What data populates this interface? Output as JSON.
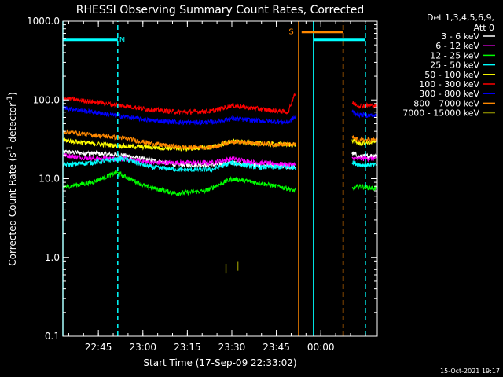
{
  "chart_data": {
    "type": "line",
    "title": "RHESSI Observing Summary Count Rates, Corrected",
    "xlabel": "Start Time (17-Sep-09 22:33:02)",
    "ylabel_main": "Corrected Count Rate (s",
    "ylabel_sup1": "-1",
    "ylabel_mid": " detector",
    "ylabel_sup2": "-1",
    "ylabel_end": ")",
    "y_scale": "log",
    "ylim": [
      0.1,
      1000.0
    ],
    "y_ticks": [
      {
        "value": 1000.0,
        "label": "1000.0"
      },
      {
        "value": 100.0,
        "label": "100.0"
      },
      {
        "value": 10.0,
        "label": "10.0"
      },
      {
        "value": 1.0,
        "label": "1.0"
      },
      {
        "value": 0.1,
        "label": "0.1"
      }
    ],
    "x_unit": "minutes after 22:33:02",
    "xlim": [
      0,
      106
    ],
    "x_ticks": [
      {
        "t": 11.97,
        "label": "22:45"
      },
      {
        "t": 26.97,
        "label": "23:00"
      },
      {
        "t": 41.97,
        "label": "23:15"
      },
      {
        "t": 56.97,
        "label": "23:30"
      },
      {
        "t": 71.97,
        "label": "23:45"
      },
      {
        "t": 86.97,
        "label": "00:00"
      }
    ],
    "legend_header_1": "Det 1,3,4,5,6,9,",
    "legend_header_2": "Att 0",
    "legend_placement": "outside-right",
    "gaps": [
      [
        78.5,
        97.5
      ]
    ],
    "series": [
      {
        "name": "3 - 6 keV",
        "color": "#ffffff",
        "points": [
          [
            0,
            22
          ],
          [
            10,
            21
          ],
          [
            20,
            20
          ],
          [
            30,
            17
          ],
          [
            40,
            15
          ],
          [
            50,
            15
          ],
          [
            57,
            16
          ],
          [
            65,
            15
          ],
          [
            78,
            14
          ],
          [
            98,
            21
          ],
          [
            100,
            19
          ],
          [
            106,
            20
          ]
        ]
      },
      {
        "name": "6 - 12 keV",
        "color": "#ff00ff",
        "points": [
          [
            0,
            20
          ],
          [
            10,
            18
          ],
          [
            20,
            18
          ],
          [
            30,
            16
          ],
          [
            40,
            16
          ],
          [
            50,
            16
          ],
          [
            57,
            18
          ],
          [
            65,
            16
          ],
          [
            78,
            15
          ],
          [
            98,
            18
          ],
          [
            100,
            18
          ],
          [
            106,
            18
          ]
        ]
      },
      {
        "name": "12 - 25 keV",
        "color": "#00ff00",
        "points": [
          [
            0,
            7.8
          ],
          [
            10,
            9
          ],
          [
            18,
            12
          ],
          [
            28,
            8
          ],
          [
            38,
            6.5
          ],
          [
            48,
            7
          ],
          [
            57,
            10
          ],
          [
            65,
            9
          ],
          [
            76,
            7.5
          ],
          [
            78,
            7
          ],
          [
            98,
            7.5
          ],
          [
            100,
            8
          ],
          [
            106,
            7.5
          ]
        ]
      },
      {
        "name": "25 - 50 keV",
        "color": "#00ffff",
        "points": [
          [
            0,
            15
          ],
          [
            10,
            16
          ],
          [
            20,
            18
          ],
          [
            30,
            14
          ],
          [
            40,
            13
          ],
          [
            50,
            13
          ],
          [
            57,
            16
          ],
          [
            65,
            14
          ],
          [
            78,
            14
          ],
          [
            98,
            16
          ],
          [
            100,
            15
          ],
          [
            106,
            15
          ]
        ]
      },
      {
        "name": "50 - 100 keV",
        "color": "#ffff00",
        "points": [
          [
            0,
            31
          ],
          [
            10,
            28
          ],
          [
            20,
            26
          ],
          [
            30,
            25
          ],
          [
            40,
            24
          ],
          [
            50,
            25
          ],
          [
            57,
            30
          ],
          [
            65,
            28
          ],
          [
            78,
            27
          ],
          [
            98,
            30
          ],
          [
            100,
            28
          ],
          [
            106,
            29
          ]
        ]
      },
      {
        "name": "100 - 300 keV",
        "color": "#ff0000",
        "points": [
          [
            0,
            105
          ],
          [
            10,
            95
          ],
          [
            20,
            85
          ],
          [
            30,
            75
          ],
          [
            40,
            70
          ],
          [
            50,
            72
          ],
          [
            57,
            85
          ],
          [
            65,
            78
          ],
          [
            76,
            70
          ],
          [
            78,
            118
          ],
          [
            98,
            90
          ],
          [
            100,
            85
          ],
          [
            106,
            85
          ]
        ]
      },
      {
        "name": "300 - 800 keV",
        "color": "#0000ff",
        "points": [
          [
            0,
            80
          ],
          [
            10,
            70
          ],
          [
            20,
            62
          ],
          [
            30,
            55
          ],
          [
            40,
            52
          ],
          [
            50,
            52
          ],
          [
            57,
            58
          ],
          [
            65,
            55
          ],
          [
            76,
            52
          ],
          [
            78,
            60
          ],
          [
            98,
            70
          ],
          [
            100,
            65
          ],
          [
            106,
            63
          ]
        ]
      },
      {
        "name": "800 - 7000 keV",
        "color": "#ff8800",
        "points": [
          [
            0,
            40
          ],
          [
            10,
            36
          ],
          [
            20,
            33
          ],
          [
            30,
            28
          ],
          [
            40,
            25
          ],
          [
            50,
            25
          ],
          [
            57,
            30
          ],
          [
            65,
            28
          ],
          [
            78,
            27
          ],
          [
            98,
            33
          ],
          [
            100,
            31
          ],
          [
            106,
            31
          ]
        ]
      },
      {
        "name": "7000 - 15000 keV",
        "color": "#808000",
        "points": [
          [
            55,
            0.72
          ],
          [
            59,
            0.78
          ]
        ]
      }
    ],
    "vlines": [
      {
        "t": 0,
        "color": "#00ffff",
        "dash": false
      },
      {
        "t": 18.5,
        "color": "#00ffff",
        "dash": true
      },
      {
        "t": 79.5,
        "color": "#ff8800",
        "dash": false
      },
      {
        "t": 84.5,
        "color": "#00ffff",
        "dash": false
      },
      {
        "t": 94.5,
        "color": "#ff8800",
        "dash": true
      },
      {
        "t": 102.0,
        "color": "#00ffff",
        "dash": true
      }
    ],
    "flag_bars": [
      {
        "t0": 0,
        "t1": 18.5,
        "value": 580,
        "color": "#00ffff"
      },
      {
        "t0": 84.5,
        "t1": 102.0,
        "value": 580,
        "color": "#00ffff"
      },
      {
        "t0": 80.5,
        "t1": 94.5,
        "value": 730,
        "color": "#ff8800"
      }
    ],
    "flag_labels": [
      {
        "text": "N",
        "t": 20.0,
        "value": 590,
        "color": "#00ffff"
      },
      {
        "text": "S",
        "t": 77.0,
        "value": 750,
        "color": "#ff8800"
      }
    ],
    "footer_date": "15-Oct-2021 19:17"
  }
}
